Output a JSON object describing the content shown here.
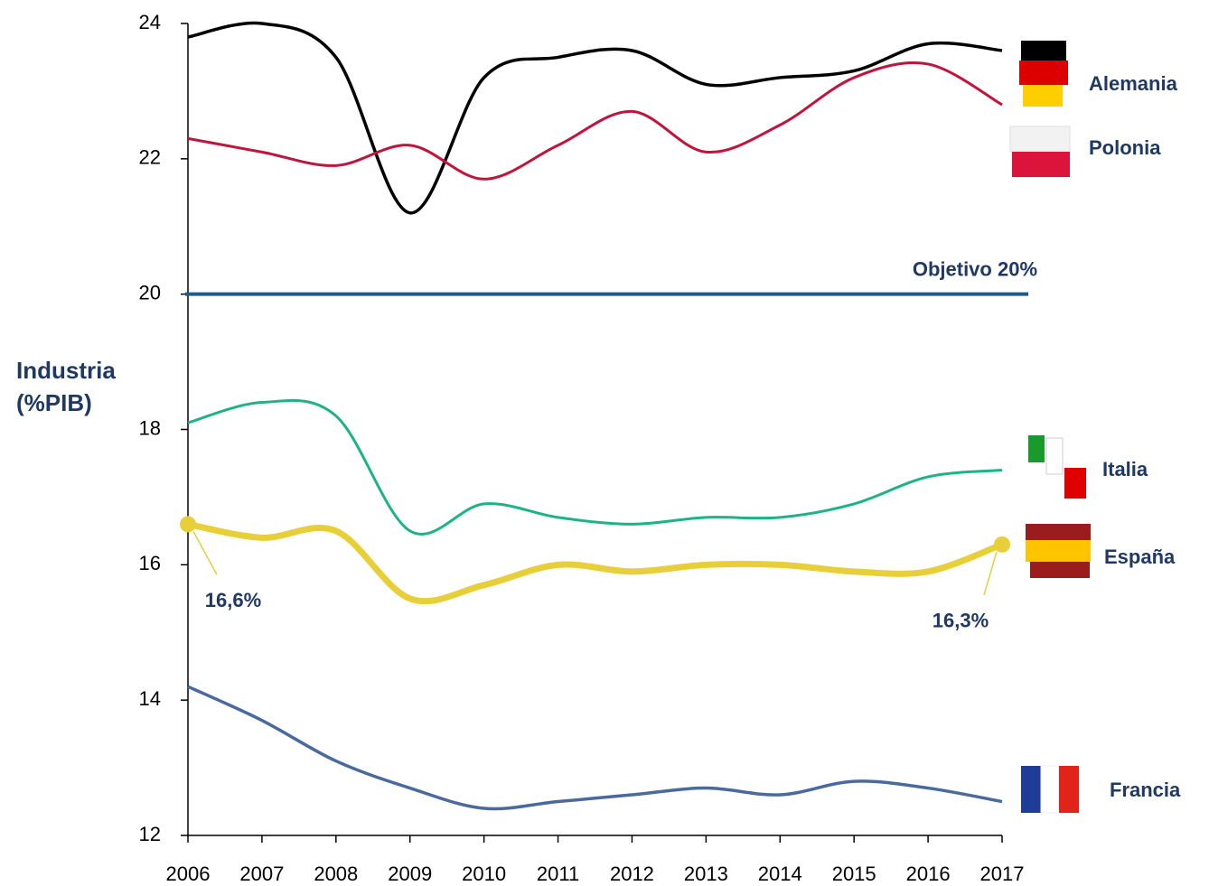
{
  "chart_data": {
    "type": "line",
    "y_label": "Industria (%PIB)",
    "x": [
      2006,
      2007,
      2008,
      2009,
      2010,
      2011,
      2012,
      2013,
      2014,
      2015,
      2016,
      2017
    ],
    "xlim": [
      2006,
      2017
    ],
    "xticks": [
      2006,
      2007,
      2008,
      2009,
      2010,
      2011,
      2012,
      2013,
      2014,
      2015,
      2016,
      2017
    ],
    "ylim": [
      12,
      24
    ],
    "yticks": [
      12,
      14,
      16,
      18,
      20,
      22,
      24
    ],
    "grid": false,
    "target": {
      "label": "Objetivo 20%",
      "value": 20,
      "color": "#1b5a8f"
    },
    "series": [
      {
        "name": "Alemania",
        "color": "#000000",
        "values": [
          23.8,
          24.0,
          23.5,
          21.2,
          23.2,
          23.5,
          23.6,
          23.1,
          23.2,
          23.3,
          23.7,
          23.6
        ]
      },
      {
        "name": "Polonia",
        "color": "#c0143c",
        "values": [
          22.3,
          22.1,
          21.9,
          22.2,
          21.7,
          22.2,
          22.7,
          22.1,
          22.5,
          23.2,
          23.4,
          22.8
        ]
      },
      {
        "name": "Italia",
        "color": "#1db386",
        "values": [
          18.1,
          18.4,
          18.2,
          16.5,
          16.9,
          16.7,
          16.6,
          16.7,
          16.7,
          16.9,
          17.3,
          17.4
        ]
      },
      {
        "name": "España",
        "color": "#e8cf3a",
        "values": [
          16.6,
          16.4,
          16.5,
          15.5,
          15.7,
          16.0,
          15.9,
          16.0,
          16.0,
          15.9,
          15.9,
          16.3
        ],
        "value_labels": [
          "16,6%",
          null,
          null,
          null,
          null,
          null,
          null,
          null,
          null,
          null,
          null,
          "16,3%"
        ]
      },
      {
        "name": "Francia",
        "color": "#4a6a9e",
        "values": [
          14.2,
          13.7,
          13.1,
          12.7,
          12.4,
          12.5,
          12.6,
          12.7,
          12.6,
          12.8,
          12.7,
          12.5
        ]
      }
    ]
  }
}
